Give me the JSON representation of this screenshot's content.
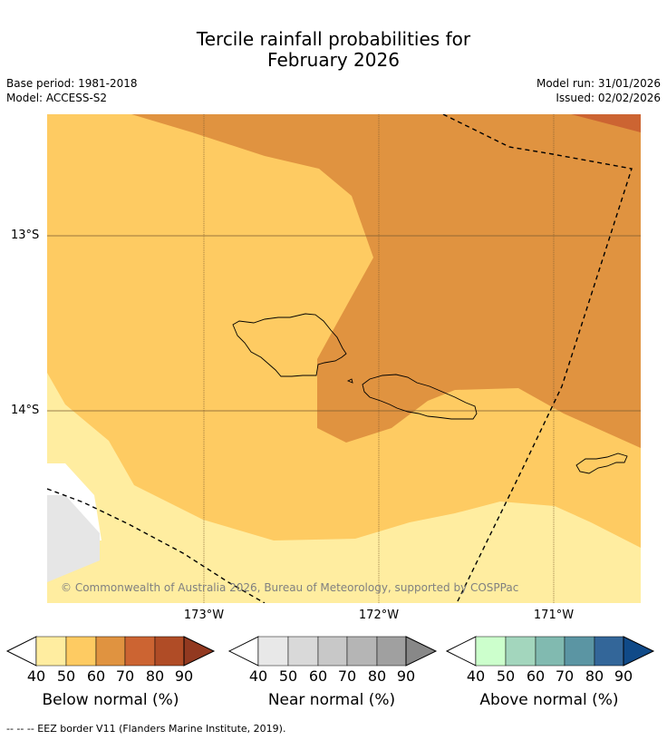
{
  "title_line1": "Tercile rainfall probabilities for",
  "title_line2": "February 2026",
  "base_period": "Base period: 1981-2018",
  "model": "Model: ACCESS-S2",
  "model_run": "Model run: 31/01/2026",
  "issued": "Issued: 02/02/2026",
  "lat_labels": [
    "13°S",
    "14°S"
  ],
  "lon_labels": [
    "173°W",
    "172°W",
    "171°W"
  ],
  "copyright": "© Commonwealth of Australia 2026, Bureau of Meteorology, supported by COSPPac",
  "colorbars": [
    {
      "label": "Below normal (%)",
      "ticks": [
        "40",
        "50",
        "60",
        "70",
        "80",
        "90"
      ],
      "colors": [
        "#ffffff",
        "#ffeda0",
        "#fecb62",
        "#e09340",
        "#cc6432",
        "#b04c26",
        "#923920"
      ]
    },
    {
      "label": "Near normal (%)",
      "ticks": [
        "40",
        "50",
        "60",
        "70",
        "80",
        "90"
      ],
      "colors": [
        "#ffffff",
        "#e8e8e8",
        "#d9d9d9",
        "#c8c8c8",
        "#b5b5b5",
        "#a0a0a0",
        "#888888"
      ]
    },
    {
      "label": "Above normal (%)",
      "ticks": [
        "40",
        "50",
        "60",
        "70",
        "80",
        "90"
      ],
      "colors": [
        "#ffffff",
        "#ccffcc",
        "#a3d6bd",
        "#81bab0",
        "#5b95a3",
        "#336699",
        "#104a88"
      ]
    }
  ],
  "eez_note": "--  --  -- EEZ border V11 (Flanders Marine Institute, 2019)."
}
